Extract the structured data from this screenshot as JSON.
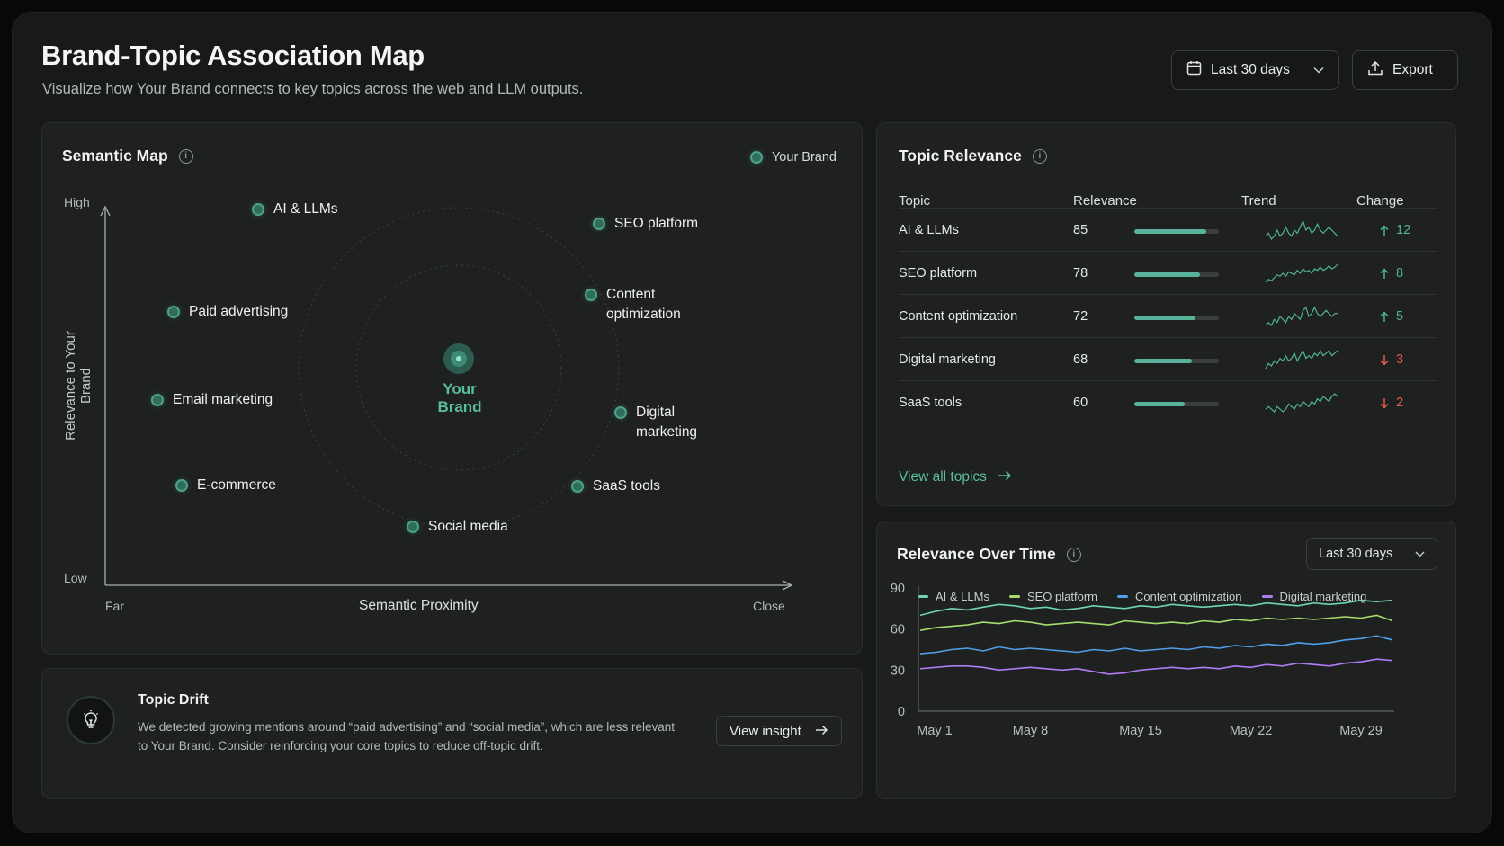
{
  "header": {
    "title": "Brand-Topic Association Map",
    "subtitle": "Visualize how Your Brand connects to key topics across the web and LLM outputs.",
    "date_range_label": "Last 30 days",
    "export_label": "Export"
  },
  "semantic_map": {
    "title": "Semantic Map",
    "legend_label": "Your Brand",
    "center_label": "Your Brand",
    "y_axis_title": "Relevance to Your Brand",
    "y_high": "High",
    "y_low": "Low",
    "x_axis_title": "Semantic Proximity",
    "x_far": "Far",
    "x_close": "Close",
    "nodes": [
      {
        "line1": "AI & LLMs",
        "line2": ""
      },
      {
        "line1": "SEO platform",
        "line2": ""
      },
      {
        "line1": "Paid advertising",
        "line2": ""
      },
      {
        "line1": "Content",
        "line2": "optimization"
      },
      {
        "line1": "Email marketing",
        "line2": ""
      },
      {
        "line1": "Digital",
        "line2": "marketing"
      },
      {
        "line1": "E-commerce",
        "line2": ""
      },
      {
        "line1": "SaaS tools",
        "line2": ""
      },
      {
        "line1": "Social media",
        "line2": ""
      }
    ]
  },
  "topic_drift": {
    "title": "Topic Drift",
    "text": "We detected growing mentions around “paid advertising” and “social media”, which are less relevant to Your Brand. Consider reinforcing your core topics to reduce off-topic drift.",
    "button_label": "View insight"
  },
  "topic_relevance": {
    "title": "Topic Relevance",
    "columns": [
      "Topic",
      "Relevance",
      "Trend",
      "Change"
    ],
    "rows": [
      {
        "topic": "AI & LLMs",
        "relevance": "85",
        "direction": "up",
        "change": "12",
        "trend": [
          6,
          7,
          5,
          6,
          8,
          6,
          7,
          9,
          7,
          6,
          8,
          7,
          9,
          11,
          8,
          9,
          7,
          8,
          10,
          8,
          7,
          8,
          9,
          8,
          7,
          6
        ]
      },
      {
        "topic": "SEO platform",
        "relevance": "78",
        "direction": "up",
        "change": "8",
        "trend": [
          3,
          5,
          4,
          6,
          8,
          7,
          9,
          7,
          10,
          9,
          8,
          11,
          9,
          12,
          10,
          11,
          9,
          12,
          11,
          13,
          11,
          12,
          14,
          12,
          13,
          15
        ]
      },
      {
        "topic": "Content optimization",
        "relevance": "72",
        "direction": "up",
        "change": "5",
        "trend": [
          6,
          7,
          6,
          8,
          7,
          9,
          8,
          7,
          9,
          8,
          10,
          9,
          8,
          11,
          12,
          9,
          10,
          12,
          10,
          9,
          10,
          11,
          10,
          9,
          10,
          10
        ]
      },
      {
        "topic": "Digital marketing",
        "relevance": "68",
        "direction": "down",
        "change": "3",
        "trend": [
          5,
          7,
          6,
          8,
          7,
          9,
          8,
          10,
          8,
          9,
          11,
          8,
          10,
          12,
          9,
          10,
          9,
          11,
          10,
          12,
          10,
          11,
          12,
          10,
          11,
          12
        ]
      },
      {
        "topic": "SaaS tools",
        "relevance": "60",
        "direction": "down",
        "change": "2",
        "trend": [
          7,
          8,
          7,
          6,
          8,
          7,
          6,
          7,
          9,
          8,
          7,
          9,
          8,
          10,
          9,
          8,
          10,
          9,
          11,
          10,
          12,
          11,
          10,
          12,
          13,
          12
        ]
      }
    ],
    "view_all_label": "View all topics"
  },
  "relevance_over_time": {
    "title": "Relevance Over Time",
    "select_label": "Last 30 days"
  },
  "chart_data": {
    "type": "line",
    "title": "Relevance Over Time",
    "xlabel": "",
    "ylabel": "",
    "ylim": [
      0,
      90
    ],
    "yticks": [
      "90",
      "60",
      "30",
      "0"
    ],
    "x_tick_labels": [
      "May 1",
      "May 8",
      "May 15",
      "May 22",
      "May 29"
    ],
    "x": [
      "May 1",
      "May 2",
      "May 3",
      "May 4",
      "May 5",
      "May 6",
      "May 7",
      "May 8",
      "May 9",
      "May 10",
      "May 11",
      "May 12",
      "May 13",
      "May 14",
      "May 15",
      "May 16",
      "May 17",
      "May 18",
      "May 19",
      "May 20",
      "May 21",
      "May 22",
      "May 23",
      "May 24",
      "May 25",
      "May 26",
      "May 27",
      "May 28",
      "May 29",
      "May 30",
      "May 31"
    ],
    "legend_position": "top-left",
    "grid": false,
    "series": [
      {
        "name": "AI & LLMs",
        "color": "#6fd3b4",
        "values": [
          70,
          73,
          75,
          74,
          76,
          78,
          77,
          75,
          76,
          74,
          75,
          77,
          76,
          75,
          77,
          76,
          78,
          77,
          76,
          77,
          78,
          77,
          79,
          78,
          77,
          79,
          78,
          79,
          81,
          80,
          81
        ]
      },
      {
        "name": "SEO platform",
        "color": "#a7dc6e",
        "values": [
          59,
          61,
          62,
          63,
          65,
          64,
          66,
          65,
          63,
          64,
          65,
          64,
          63,
          66,
          65,
          64,
          65,
          64,
          66,
          65,
          67,
          66,
          68,
          67,
          68,
          67,
          68,
          69,
          68,
          70,
          66
        ]
      },
      {
        "name": "Content optimization",
        "color": "#4f9ee8",
        "values": [
          42,
          43,
          45,
          46,
          44,
          47,
          45,
          46,
          45,
          44,
          43,
          45,
          44,
          46,
          44,
          45,
          46,
          45,
          47,
          46,
          48,
          47,
          49,
          48,
          50,
          49,
          50,
          52,
          53,
          55,
          52
        ]
      },
      {
        "name": "Digital marketing",
        "color": "#b07cf2",
        "values": [
          31,
          32,
          33,
          33,
          32,
          30,
          31,
          32,
          31,
          30,
          31,
          29,
          27,
          28,
          30,
          31,
          32,
          31,
          32,
          31,
          33,
          32,
          34,
          33,
          35,
          34,
          33,
          35,
          36,
          38,
          37
        ]
      }
    ]
  }
}
